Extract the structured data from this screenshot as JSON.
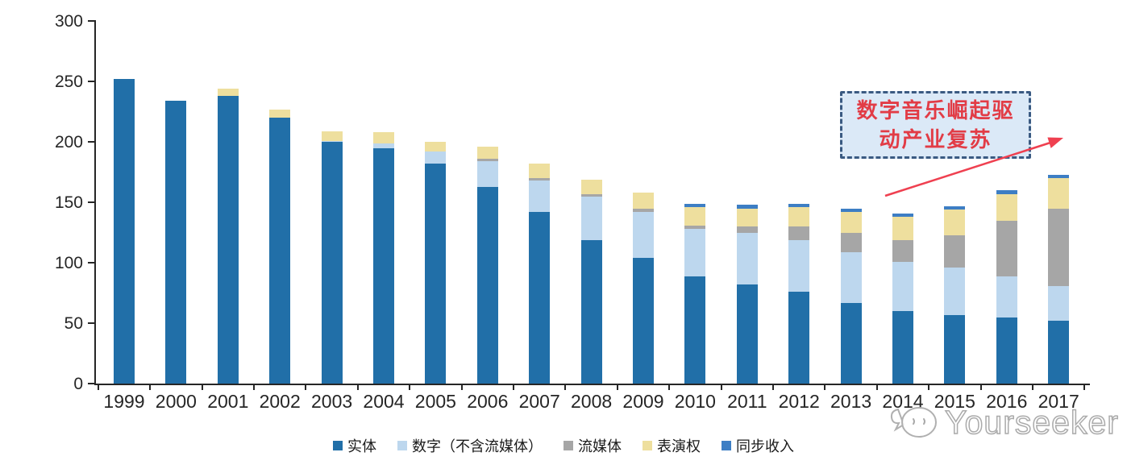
{
  "chart_data": {
    "type": "bar",
    "stacked": true,
    "title": "",
    "xlabel": "",
    "ylabel": "",
    "ylim": [
      0,
      300
    ],
    "yticks": [
      0,
      50,
      100,
      150,
      200,
      250,
      300
    ],
    "grid": false,
    "legend_position": "bottom",
    "axis_color": "#262626",
    "categories": [
      "1999",
      "2000",
      "2001",
      "2002",
      "2003",
      "2004",
      "2005",
      "2006",
      "2007",
      "2008",
      "2009",
      "2010",
      "2011",
      "2012",
      "2013",
      "2014",
      "2015",
      "2016",
      "2017"
    ],
    "series": [
      {
        "name": "实体",
        "slug": "physical",
        "color": "#216fa8",
        "values": [
          252,
          234,
          238,
          220,
          200,
          195,
          182,
          163,
          142,
          119,
          104,
          89,
          82,
          76,
          67,
          60,
          57,
          55,
          52
        ]
      },
      {
        "name": "数字（不含流媒体）",
        "slug": "digital-excl-streaming",
        "color": "#bdd7ee",
        "values": [
          0,
          0,
          0,
          0,
          1,
          4,
          10,
          21,
          26,
          36,
          38,
          39,
          43,
          43,
          42,
          41,
          39,
          34,
          29
        ]
      },
      {
        "name": "流媒体",
        "slug": "streaming",
        "color": "#a6a6a6",
        "values": [
          0,
          0,
          0,
          0,
          0,
          0,
          0,
          2,
          2,
          2,
          3,
          3,
          5,
          11,
          16,
          18,
          27,
          46,
          64
        ]
      },
      {
        "name": "表演权",
        "slug": "performance-rights",
        "color": "#eedf9e",
        "values": [
          0,
          0,
          6,
          7,
          8,
          9,
          8,
          10,
          12,
          12,
          13,
          15,
          15,
          16,
          17,
          19,
          21,
          22,
          25
        ]
      },
      {
        "name": "同步收入",
        "slug": "sync-revenue",
        "color": "#3d7ec4",
        "values": [
          0,
          0,
          0,
          0,
          0,
          0,
          0,
          0,
          0,
          0,
          0,
          3,
          3,
          3,
          3,
          3,
          3,
          3,
          3
        ]
      }
    ]
  },
  "annotation": {
    "lines": [
      "数字音乐崛起驱",
      "动产业复苏"
    ],
    "full_text": "数字音乐崛起驱动产业复苏",
    "text_color": "#e23c46",
    "border_color": "#3a5a82",
    "fill_color": "#dbe9f7",
    "arrow_color": "#ef4050"
  },
  "watermark": {
    "text": "Yourseeker",
    "logo": "yourseeker-mascot-icon"
  }
}
